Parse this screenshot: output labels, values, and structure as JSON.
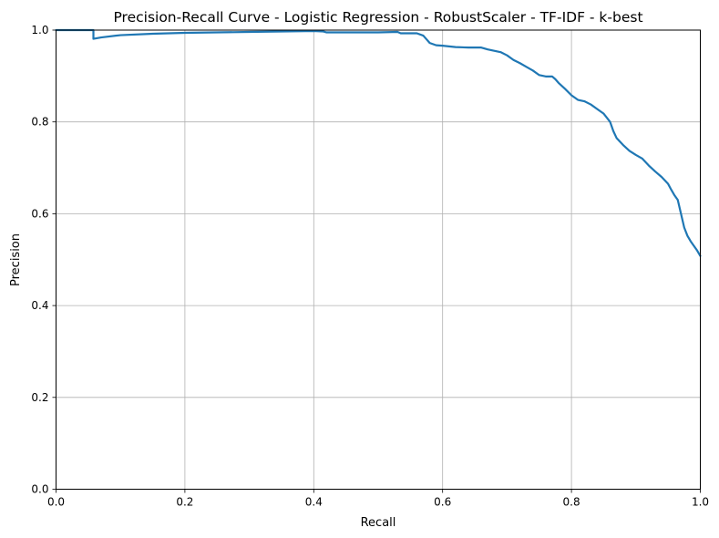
{
  "chart_data": {
    "type": "line",
    "title": "Precision-Recall Curve - Logistic Regression - RobustScaler - TF-IDF - k-best",
    "xlabel": "Recall",
    "ylabel": "Precision",
    "xlim": [
      0,
      1
    ],
    "ylim": [
      0,
      1
    ],
    "xticks": [
      "0.0",
      "0.2",
      "0.4",
      "0.6",
      "0.8",
      "1.0"
    ],
    "yticks": [
      "0.0",
      "0.2",
      "0.4",
      "0.6",
      "0.8",
      "1.0"
    ],
    "grid": true,
    "line_color": "#1f77b4",
    "series": [
      {
        "x": [
          0.0,
          0.058,
          0.058,
          0.07,
          0.1,
          0.15,
          0.2,
          0.3,
          0.35,
          0.4,
          0.415,
          0.42,
          0.5,
          0.53,
          0.535,
          0.56,
          0.57,
          0.575,
          0.58,
          0.59,
          0.6,
          0.62,
          0.64,
          0.66,
          0.67,
          0.69,
          0.7,
          0.71,
          0.72,
          0.73,
          0.74,
          0.75,
          0.76,
          0.77,
          0.775,
          0.78,
          0.79,
          0.8,
          0.81,
          0.82,
          0.83,
          0.84,
          0.85,
          0.86,
          0.865,
          0.87,
          0.88,
          0.89,
          0.9,
          0.91,
          0.92,
          0.93,
          0.94,
          0.95,
          0.955,
          0.96,
          0.965,
          0.97,
          0.975,
          0.98,
          0.985,
          0.99,
          0.995,
          1.0
        ],
        "y": [
          1.0,
          1.0,
          0.981,
          0.984,
          0.989,
          0.992,
          0.994,
          0.996,
          0.997,
          0.998,
          0.997,
          0.995,
          0.995,
          0.996,
          0.993,
          0.993,
          0.988,
          0.98,
          0.972,
          0.967,
          0.966,
          0.963,
          0.962,
          0.962,
          0.958,
          0.952,
          0.945,
          0.935,
          0.928,
          0.92,
          0.912,
          0.902,
          0.899,
          0.899,
          0.893,
          0.885,
          0.872,
          0.858,
          0.848,
          0.845,
          0.838,
          0.828,
          0.818,
          0.8,
          0.78,
          0.765,
          0.75,
          0.737,
          0.728,
          0.72,
          0.705,
          0.692,
          0.68,
          0.665,
          0.652,
          0.64,
          0.63,
          0.6,
          0.57,
          0.552,
          0.54,
          0.53,
          0.52,
          0.508
        ]
      }
    ]
  }
}
